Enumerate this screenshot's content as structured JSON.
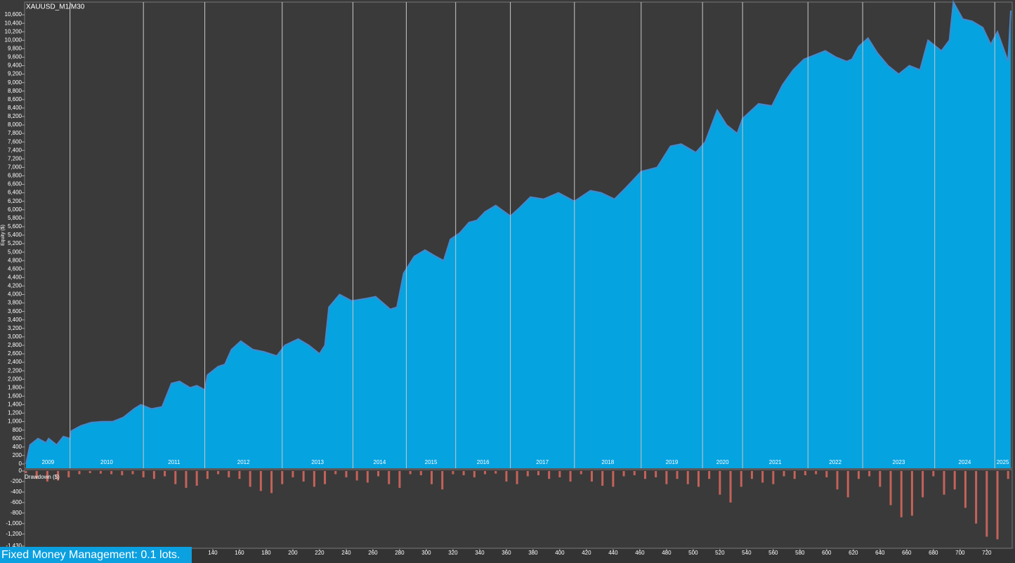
{
  "chart_data": [
    {
      "type": "area",
      "title": "XAUUSD_M1/M30",
      "y_label": "Equity ($)",
      "color": "#05a3e0",
      "line_color": "#4a86c8",
      "xlim": [
        0,
        738
      ],
      "ylim": [
        -100,
        10900
      ],
      "yticks": [
        0,
        200,
        400,
        600,
        800,
        {
          "value": 1000,
          "label": "1,000"
        },
        {
          "value": 1200,
          "label": "1,200"
        },
        {
          "value": 1400,
          "label": "1,400"
        },
        {
          "value": 1600,
          "label": "1,600"
        },
        {
          "value": 1800,
          "label": "1,800"
        },
        {
          "value": 2000,
          "label": "2,000"
        },
        {
          "value": 2200,
          "label": "2,200"
        },
        {
          "value": 2400,
          "label": "2,400"
        },
        {
          "value": 2600,
          "label": "2,600"
        },
        {
          "value": 2800,
          "label": "2,800"
        },
        {
          "value": 3000,
          "label": "3,000"
        },
        {
          "value": 3200,
          "label": "3,200"
        },
        {
          "value": 3400,
          "label": "3,400"
        },
        {
          "value": 3600,
          "label": "3,600"
        },
        {
          "value": 3800,
          "label": "3,800"
        },
        {
          "value": 4000,
          "label": "4,000"
        },
        {
          "value": 4200,
          "label": "4,200"
        },
        {
          "value": 4400,
          "label": "4,400"
        },
        {
          "value": 4600,
          "label": "4,600"
        },
        {
          "value": 4800,
          "label": "4,800"
        },
        {
          "value": 5000,
          "label": "5,000"
        },
        {
          "value": 5200,
          "label": "5,200"
        },
        {
          "value": 5400,
          "label": "5,400"
        },
        {
          "value": 5600,
          "label": "5,600"
        },
        {
          "value": 5800,
          "label": "5,800"
        },
        {
          "value": 6000,
          "label": "6,000"
        },
        {
          "value": 6200,
          "label": "6,200"
        },
        {
          "value": 6400,
          "label": "6,400"
        },
        {
          "value": 6600,
          "label": "6,600"
        },
        {
          "value": 6800,
          "label": "6,800"
        },
        {
          "value": 7000,
          "label": "7,000"
        },
        {
          "value": 7200,
          "label": "7,200"
        },
        {
          "value": 7400,
          "label": "7,400"
        },
        {
          "value": 7600,
          "label": "7,600"
        },
        {
          "value": 7800,
          "label": "7,800"
        },
        {
          "value": 8000,
          "label": "8,000"
        },
        {
          "value": 8200,
          "label": "8,200"
        },
        {
          "value": 8400,
          "label": "8,400"
        },
        {
          "value": 8600,
          "label": "8,600"
        },
        {
          "value": 8800,
          "label": "8,800"
        },
        {
          "value": 9000,
          "label": "9,000"
        },
        {
          "value": 9200,
          "label": "9,200"
        },
        {
          "value": 9400,
          "label": "9,400"
        },
        {
          "value": 9600,
          "label": "9,600"
        },
        {
          "value": 9800,
          "label": "9,800"
        },
        {
          "value": 10000,
          "label": "10,000"
        },
        {
          "value": 10200,
          "label": "10,200"
        },
        {
          "value": 10400,
          "label": "10,400"
        },
        {
          "value": 10600,
          "label": "10,600"
        }
      ],
      "year_labels": [
        "2009",
        "2010",
        "2011",
        "2012",
        "2013",
        "2014",
        "2015",
        "2016",
        "2017",
        "2018",
        "2019",
        "2020",
        "2021",
        "2022",
        "2023",
        "2024",
        "2025"
      ],
      "year_edges": [
        0,
        33,
        88,
        134,
        192,
        245,
        285,
        322,
        363,
        411,
        461,
        507,
        537,
        586,
        627,
        681,
        726,
        738
      ],
      "x": [
        0,
        3,
        7,
        9,
        15,
        17,
        23,
        28,
        33,
        34,
        41,
        49,
        57,
        65,
        73,
        81,
        86,
        94,
        102,
        109,
        115,
        123,
        128,
        134,
        136,
        144,
        149,
        154,
        161,
        170,
        178,
        188,
        194,
        204,
        212,
        220,
        224,
        227,
        235,
        244,
        254,
        262,
        273,
        278,
        283,
        291,
        299,
        307,
        313,
        318,
        325,
        332,
        338,
        344,
        352,
        363,
        370,
        378,
        388,
        399,
        411,
        423,
        431,
        441,
        449,
        461,
        473,
        483,
        491,
        502,
        509,
        518,
        525,
        533,
        537,
        549,
        559,
        567,
        575,
        583,
        591,
        599,
        607,
        615,
        619,
        624,
        631,
        638,
        646,
        654,
        662,
        670,
        676,
        686,
        692,
        695,
        702,
        709,
        717,
        723,
        728,
        736,
        738
      ],
      "values": [
        0,
        450,
        550,
        600,
        500,
        600,
        450,
        650,
        600,
        780,
        900,
        980,
        1000,
        1000,
        1100,
        1300,
        1400,
        1300,
        1350,
        1900,
        1950,
        1800,
        1850,
        1750,
        2100,
        2300,
        2350,
        2700,
        2900,
        2700,
        2650,
        2550,
        2800,
        2950,
        2800,
        2600,
        2800,
        3700,
        4000,
        3850,
        3900,
        3950,
        3650,
        3700,
        4500,
        4900,
        5050,
        4900,
        4800,
        5300,
        5450,
        5700,
        5750,
        5950,
        6100,
        5850,
        6050,
        6300,
        6250,
        6400,
        6200,
        6450,
        6400,
        6250,
        6500,
        6900,
        7000,
        7500,
        7550,
        7350,
        7600,
        8350,
        8000,
        7800,
        8150,
        8500,
        8450,
        8950,
        9300,
        9550,
        9650,
        9750,
        9600,
        9500,
        9550,
        9850,
        10050,
        9700,
        9400,
        9200,
        9400,
        9300,
        10000,
        9750,
        10000,
        10900,
        10500,
        10450,
        10300,
        9900,
        10200,
        9500,
        10700
      ]
    },
    {
      "type": "bar",
      "y_label": "Drawdown ($)",
      "color": "#c4625a",
      "xlim": [
        0,
        738
      ],
      "ylim": [
        -1430,
        0
      ],
      "yticks": [
        0,
        -200,
        -400,
        -600,
        -800,
        {
          "value": -1000,
          "label": "-1,000"
        },
        {
          "value": -1200,
          "label": "-1,200"
        },
        {
          "value": -1430,
          "label": "-1,430"
        }
      ],
      "xticks": [
        140,
        160,
        180,
        200,
        220,
        240,
        260,
        280,
        300,
        320,
        340,
        360,
        380,
        400,
        420,
        440,
        460,
        480,
        500,
        520,
        540,
        560,
        580,
        600,
        620,
        640,
        660,
        680,
        700,
        720
      ],
      "x": [
        0,
        8,
        16,
        24,
        32,
        40,
        48,
        56,
        64,
        72,
        80,
        88,
        96,
        104,
        112,
        120,
        128,
        136,
        144,
        152,
        160,
        168,
        176,
        184,
        192,
        200,
        208,
        216,
        224,
        232,
        240,
        248,
        256,
        264,
        272,
        280,
        288,
        296,
        304,
        312,
        320,
        328,
        336,
        344,
        352,
        360,
        368,
        376,
        384,
        392,
        400,
        408,
        416,
        424,
        432,
        440,
        448,
        456,
        464,
        472,
        480,
        488,
        496,
        504,
        512,
        520,
        528,
        536,
        544,
        552,
        560,
        568,
        576,
        584,
        592,
        600,
        608,
        616,
        624,
        632,
        640,
        648,
        656,
        664,
        672,
        680,
        688,
        696,
        704,
        712,
        720,
        728,
        736
      ],
      "values": [
        -40,
        -150,
        -200,
        -180,
        -120,
        -60,
        -40,
        -50,
        -60,
        -80,
        -60,
        -120,
        -150,
        -100,
        -250,
        -320,
        -280,
        -150,
        -60,
        -120,
        -150,
        -300,
        -380,
        -420,
        -250,
        -120,
        -200,
        -300,
        -250,
        -60,
        -120,
        -180,
        -220,
        -100,
        -250,
        -320,
        -60,
        -80,
        -250,
        -350,
        -60,
        -80,
        -120,
        -60,
        -50,
        -200,
        -250,
        -100,
        -80,
        -150,
        -120,
        -200,
        -60,
        -200,
        -280,
        -300,
        -100,
        -80,
        -150,
        -120,
        -250,
        -150,
        -250,
        -300,
        -150,
        -450,
        -600,
        -300,
        -150,
        -220,
        -250,
        -100,
        -150,
        -80,
        -60,
        -120,
        -350,
        -500,
        -150,
        -100,
        -300,
        -650,
        -880,
        -850,
        -500,
        -100,
        -450,
        -350,
        -700,
        -1000,
        -1250,
        -1300,
        -150
      ]
    }
  ],
  "banner": "Fixed Money Management: 0.1 lots."
}
